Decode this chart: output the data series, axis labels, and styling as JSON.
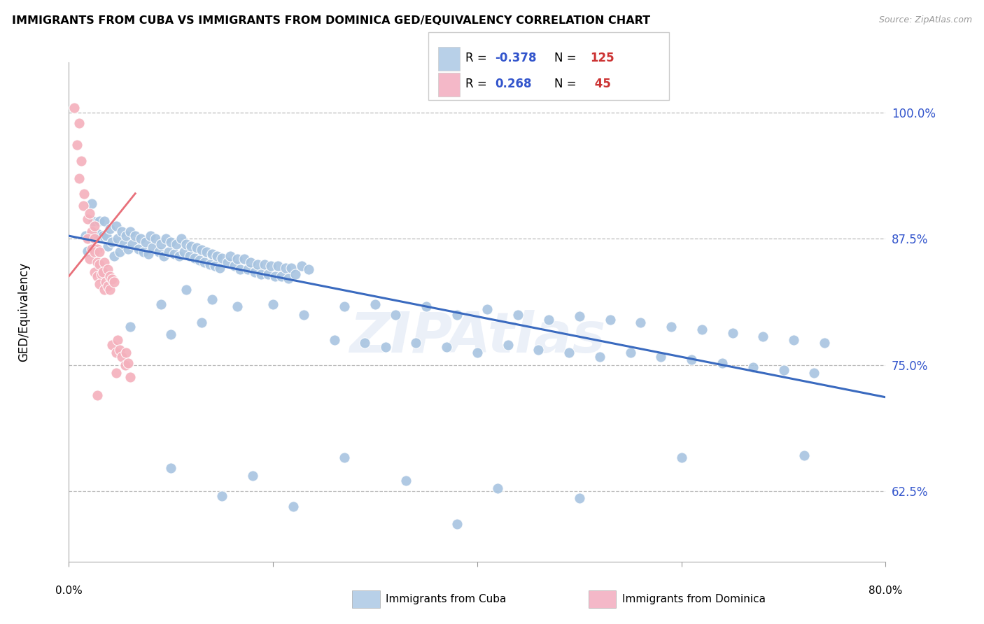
{
  "title": "IMMIGRANTS FROM CUBA VS IMMIGRANTS FROM DOMINICA GED/EQUIVALENCY CORRELATION CHART",
  "source": "Source: ZipAtlas.com",
  "ylabel": "GED/Equivalency",
  "yticks": [
    0.625,
    0.75,
    0.875,
    1.0
  ],
  "ytick_labels": [
    "62.5%",
    "75.0%",
    "87.5%",
    "100.0%"
  ],
  "xlim": [
    0.0,
    0.8
  ],
  "ylim": [
    0.555,
    1.05
  ],
  "cuba_color": "#a8c4e0",
  "dominica_color": "#f4b0bc",
  "cuba_line_color": "#3a6abf",
  "dominica_line_color": "#e8707a",
  "legend_box_color_cuba": "#b8d0e8",
  "legend_box_color_dominica": "#f4b8c8",
  "r_text_color": "#3355cc",
  "n_text_color": "#cc3333",
  "watermark": "ZIPAtlas",
  "cuba_points": [
    [
      0.016,
      0.878
    ],
    [
      0.018,
      0.863
    ],
    [
      0.022,
      0.91
    ],
    [
      0.024,
      0.893
    ],
    [
      0.028,
      0.88
    ],
    [
      0.03,
      0.893
    ],
    [
      0.033,
      0.878
    ],
    [
      0.035,
      0.893
    ],
    [
      0.037,
      0.878
    ],
    [
      0.038,
      0.868
    ],
    [
      0.04,
      0.885
    ],
    [
      0.042,
      0.872
    ],
    [
      0.044,
      0.858
    ],
    [
      0.046,
      0.888
    ],
    [
      0.048,
      0.875
    ],
    [
      0.05,
      0.862
    ],
    [
      0.052,
      0.882
    ],
    [
      0.054,
      0.87
    ],
    [
      0.056,
      0.878
    ],
    [
      0.058,
      0.865
    ],
    [
      0.06,
      0.882
    ],
    [
      0.062,
      0.87
    ],
    [
      0.065,
      0.878
    ],
    [
      0.068,
      0.865
    ],
    [
      0.07,
      0.875
    ],
    [
      0.073,
      0.862
    ],
    [
      0.075,
      0.872
    ],
    [
      0.078,
      0.86
    ],
    [
      0.08,
      0.878
    ],
    [
      0.082,
      0.866
    ],
    [
      0.085,
      0.875
    ],
    [
      0.088,
      0.862
    ],
    [
      0.09,
      0.87
    ],
    [
      0.093,
      0.858
    ],
    [
      0.095,
      0.875
    ],
    [
      0.098,
      0.862
    ],
    [
      0.1,
      0.872
    ],
    [
      0.103,
      0.86
    ],
    [
      0.105,
      0.87
    ],
    [
      0.108,
      0.858
    ],
    [
      0.11,
      0.875
    ],
    [
      0.113,
      0.862
    ],
    [
      0.115,
      0.87
    ],
    [
      0.118,
      0.858
    ],
    [
      0.12,
      0.868
    ],
    [
      0.123,
      0.856
    ],
    [
      0.125,
      0.866
    ],
    [
      0.128,
      0.854
    ],
    [
      0.13,
      0.864
    ],
    [
      0.133,
      0.852
    ],
    [
      0.135,
      0.862
    ],
    [
      0.138,
      0.85
    ],
    [
      0.14,
      0.86
    ],
    [
      0.143,
      0.848
    ],
    [
      0.145,
      0.858
    ],
    [
      0.148,
      0.846
    ],
    [
      0.15,
      0.856
    ],
    [
      0.155,
      0.852
    ],
    [
      0.158,
      0.858
    ],
    [
      0.162,
      0.848
    ],
    [
      0.165,
      0.855
    ],
    [
      0.168,
      0.845
    ],
    [
      0.172,
      0.855
    ],
    [
      0.175,
      0.845
    ],
    [
      0.178,
      0.852
    ],
    [
      0.182,
      0.842
    ],
    [
      0.185,
      0.85
    ],
    [
      0.188,
      0.84
    ],
    [
      0.192,
      0.85
    ],
    [
      0.195,
      0.84
    ],
    [
      0.198,
      0.848
    ],
    [
      0.202,
      0.838
    ],
    [
      0.205,
      0.848
    ],
    [
      0.208,
      0.838
    ],
    [
      0.212,
      0.846
    ],
    [
      0.215,
      0.836
    ],
    [
      0.218,
      0.846
    ],
    [
      0.222,
      0.84
    ],
    [
      0.228,
      0.848
    ],
    [
      0.235,
      0.845
    ],
    [
      0.06,
      0.788
    ],
    [
      0.09,
      0.81
    ],
    [
      0.115,
      0.825
    ],
    [
      0.14,
      0.815
    ],
    [
      0.165,
      0.808
    ],
    [
      0.1,
      0.78
    ],
    [
      0.13,
      0.792
    ],
    [
      0.2,
      0.81
    ],
    [
      0.23,
      0.8
    ],
    [
      0.27,
      0.808
    ],
    [
      0.3,
      0.81
    ],
    [
      0.32,
      0.8
    ],
    [
      0.35,
      0.808
    ],
    [
      0.38,
      0.8
    ],
    [
      0.41,
      0.805
    ],
    [
      0.44,
      0.8
    ],
    [
      0.47,
      0.795
    ],
    [
      0.5,
      0.798
    ],
    [
      0.53,
      0.795
    ],
    [
      0.56,
      0.792
    ],
    [
      0.59,
      0.788
    ],
    [
      0.62,
      0.785
    ],
    [
      0.65,
      0.782
    ],
    [
      0.68,
      0.778
    ],
    [
      0.71,
      0.775
    ],
    [
      0.74,
      0.772
    ],
    [
      0.26,
      0.775
    ],
    [
      0.29,
      0.772
    ],
    [
      0.31,
      0.768
    ],
    [
      0.34,
      0.772
    ],
    [
      0.37,
      0.768
    ],
    [
      0.4,
      0.762
    ],
    [
      0.43,
      0.77
    ],
    [
      0.46,
      0.765
    ],
    [
      0.49,
      0.762
    ],
    [
      0.52,
      0.758
    ],
    [
      0.55,
      0.762
    ],
    [
      0.58,
      0.758
    ],
    [
      0.61,
      0.755
    ],
    [
      0.64,
      0.752
    ],
    [
      0.67,
      0.748
    ],
    [
      0.7,
      0.745
    ],
    [
      0.73,
      0.742
    ],
    [
      0.1,
      0.648
    ],
    [
      0.18,
      0.64
    ],
    [
      0.27,
      0.658
    ],
    [
      0.33,
      0.635
    ],
    [
      0.42,
      0.628
    ],
    [
      0.5,
      0.618
    ],
    [
      0.6,
      0.658
    ],
    [
      0.72,
      0.66
    ],
    [
      0.15,
      0.62
    ],
    [
      0.22,
      0.61
    ],
    [
      0.38,
      0.592
    ]
  ],
  "dominica_points": [
    [
      0.005,
      1.005
    ],
    [
      0.01,
      0.99
    ],
    [
      0.008,
      0.968
    ],
    [
      0.012,
      0.952
    ],
    [
      0.01,
      0.935
    ],
    [
      0.015,
      0.92
    ],
    [
      0.014,
      0.908
    ],
    [
      0.018,
      0.895
    ],
    [
      0.022,
      0.882
    ],
    [
      0.02,
      0.9
    ],
    [
      0.025,
      0.888
    ],
    [
      0.018,
      0.875
    ],
    [
      0.022,
      0.865
    ],
    [
      0.025,
      0.875
    ],
    [
      0.028,
      0.865
    ],
    [
      0.02,
      0.855
    ],
    [
      0.025,
      0.862
    ],
    [
      0.028,
      0.852
    ],
    [
      0.03,
      0.862
    ],
    [
      0.025,
      0.842
    ],
    [
      0.028,
      0.838
    ],
    [
      0.03,
      0.85
    ],
    [
      0.032,
      0.84
    ],
    [
      0.035,
      0.852
    ],
    [
      0.03,
      0.83
    ],
    [
      0.033,
      0.842
    ],
    [
      0.036,
      0.832
    ],
    [
      0.038,
      0.845
    ],
    [
      0.035,
      0.825
    ],
    [
      0.04,
      0.838
    ],
    [
      0.038,
      0.828
    ],
    [
      0.042,
      0.835
    ],
    [
      0.04,
      0.825
    ],
    [
      0.044,
      0.832
    ],
    [
      0.042,
      0.77
    ],
    [
      0.046,
      0.762
    ],
    [
      0.048,
      0.775
    ],
    [
      0.05,
      0.765
    ],
    [
      0.052,
      0.758
    ],
    [
      0.055,
      0.75
    ],
    [
      0.056,
      0.762
    ],
    [
      0.058,
      0.752
    ],
    [
      0.046,
      0.742
    ],
    [
      0.06,
      0.738
    ],
    [
      0.028,
      0.72
    ]
  ],
  "cuba_trend_x": [
    0.0,
    0.8
  ],
  "cuba_trend_y": [
    0.878,
    0.718
  ],
  "dominica_trend_x": [
    0.0,
    0.065
  ],
  "dominica_trend_y": [
    0.838,
    0.92
  ]
}
